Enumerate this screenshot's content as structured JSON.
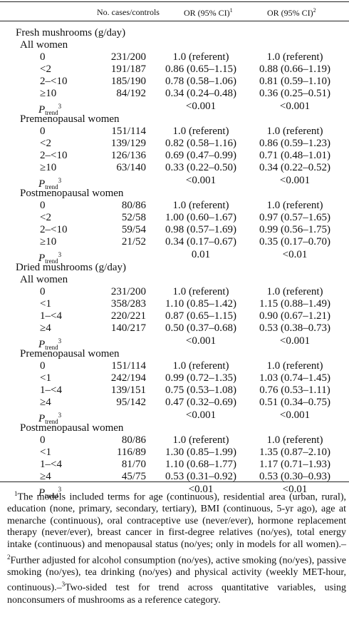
{
  "header": {
    "cases_label": "No. cases/controls",
    "or1_label": "OR (95% CI)",
    "or1_mark": "1",
    "or2_label": "OR (95% CI)",
    "or2_mark": "2"
  },
  "sections": [
    {
      "title": "Fresh mushrooms (g/day)",
      "groups": [
        {
          "name": "All women",
          "rows": [
            {
              "cat": "0",
              "cases": "231/200",
              "or1": "1.0 (referent)",
              "or2": "1.0 (referent)"
            },
            {
              "cat": "<2",
              "cases": "191/187",
              "or1": "0.86 (0.65–1.15)",
              "or2": "0.88 (0.66–1.19)"
            },
            {
              "cat": "2–<10",
              "cases": "185/190",
              "or1": "0.78 (0.58–1.06)",
              "or2": "0.81 (0.59–1.10)"
            },
            {
              "cat": "≥10",
              "cases": "84/192",
              "or1": "0.34 (0.24–0.48)",
              "or2": "0.36 (0.25–0.51)"
            }
          ],
          "ptrend": {
            "or1": "<0.001",
            "or2": "<0.001"
          }
        },
        {
          "name": "Premenopausal women",
          "rows": [
            {
              "cat": "0",
              "cases": "151/114",
              "or1": "1.0 (referent)",
              "or2": "1.0 (referent)"
            },
            {
              "cat": "<2",
              "cases": "139/129",
              "or1": "0.82 (0.58–1.16)",
              "or2": "0.86 (0.59–1.23)"
            },
            {
              "cat": "2–<10",
              "cases": "126/136",
              "or1": "0.69 (0.47–0.99)",
              "or2": "0.71 (0.48–1.01)"
            },
            {
              "cat": "≥10",
              "cases": "63/140",
              "or1": "0.33 (0.22–0.50)",
              "or2": "0.34 (0.22–0.52)"
            }
          ],
          "ptrend": {
            "or1": "<0.001",
            "or2": "<0.001"
          }
        },
        {
          "name": "Postmenopausal women",
          "rows": [
            {
              "cat": "0",
              "cases": "80/86",
              "or1": "1.0 (referent)",
              "or2": "1.0 (referent)"
            },
            {
              "cat": "<2",
              "cases": "52/58",
              "or1": "1.00 (0.60–1.67)",
              "or2": "0.97 (0.57–1.65)"
            },
            {
              "cat": "2–<10",
              "cases": "59/54",
              "or1": "0.98 (0.57–1.69)",
              "or2": "0.99 (0.56–1.75)"
            },
            {
              "cat": "≥10",
              "cases": "21/52",
              "or1": "0.34 (0.17–0.67)",
              "or2": "0.35 (0.17–0.70)"
            }
          ],
          "ptrend": {
            "or1": "0.01",
            "or2": "<0.01"
          }
        }
      ]
    },
    {
      "title": "Dried mushrooms (g/day)",
      "groups": [
        {
          "name": "All women",
          "rows": [
            {
              "cat": "0",
              "cases": "231/200",
              "or1": "1.0 (referent)",
              "or2": "1.0 (referent)"
            },
            {
              "cat": "<1",
              "cases": "358/283",
              "or1": "1.10 (0.85–1.42)",
              "or2": "1.15 (0.88–1.49)"
            },
            {
              "cat": "1–<4",
              "cases": "220/221",
              "or1": "0.87 (0.65–1.15)",
              "or2": "0.90 (0.67–1.21)"
            },
            {
              "cat": "≥4",
              "cases": "140/217",
              "or1": "0.50 (0.37–0.68)",
              "or2": "0.53 (0.38–0.73)"
            }
          ],
          "ptrend": {
            "or1": "<0.001",
            "or2": "<0.001"
          }
        },
        {
          "name": "Premenopausal women",
          "rows": [
            {
              "cat": "0",
              "cases": "151/114",
              "or1": "1.0 (referent)",
              "or2": "1.0 (referent)"
            },
            {
              "cat": "<1",
              "cases": "242/194",
              "or1": "0.99 (0.72–1.35)",
              "or2": "1.03 (0.74–1.45)"
            },
            {
              "cat": "1–<4",
              "cases": "139/151",
              "or1": "0.75 (0.53–1.08)",
              "or2": "0.76 (0.53–1.11)"
            },
            {
              "cat": "≥4",
              "cases": "95/142",
              "or1": "0.47 (0.32–0.69)",
              "or2": "0.51 (0.34–0.75)"
            }
          ],
          "ptrend": {
            "or1": "<0.001",
            "or2": "<0.001"
          }
        },
        {
          "name": "Postmenopausal women",
          "rows": [
            {
              "cat": "0",
              "cases": "80/86",
              "or1": "1.0 (referent)",
              "or2": "1.0 (referent)"
            },
            {
              "cat": "<1",
              "cases": "116/89",
              "or1": "1.30 (0.85–1.99)",
              "or2": "1.35 (0.87–2.10)"
            },
            {
              "cat": "1–<4",
              "cases": "81/70",
              "or1": "1.10 (0.68–1.77)",
              "or2": "1.17 (0.71–1.93)"
            },
            {
              "cat": "≥4",
              "cases": "45/75",
              "or1": "0.53 (0.31–0.92)",
              "or2": "0.53 (0.30–0.93)"
            }
          ],
          "ptrend": {
            "or1": "<0.01",
            "or2": "<0.01"
          }
        }
      ]
    }
  ],
  "ptrend_label": {
    "p": "P",
    "sub": "trend",
    "sup": "3"
  },
  "footnote": {
    "mark1": "1",
    "text1": "The models included terms for age (continuous), residential area (urban, rural), education (none, primary, secondary, tertiary), BMI (continuous, 5-yr ago), age at menarche (continuous), oral contraceptive use (never/ever), hormone replacement therapy (never/ever), breast cancer in first-degree relatives (no/yes), total energy intake (continuous) and menopausal status (no/yes; only in models for all women).–",
    "mark2": "2",
    "text2": "Further adjusted for alcohol consumption (no/yes), active smoking (no/yes), passive smoking (no/yes), tea drinking (no/yes) and physical activity (weekly MET-hour, continuous).–",
    "mark3": "3",
    "text3": "Two-sided test for trend across quantitative variables, using nonconsumers of mushrooms as a reference category."
  }
}
